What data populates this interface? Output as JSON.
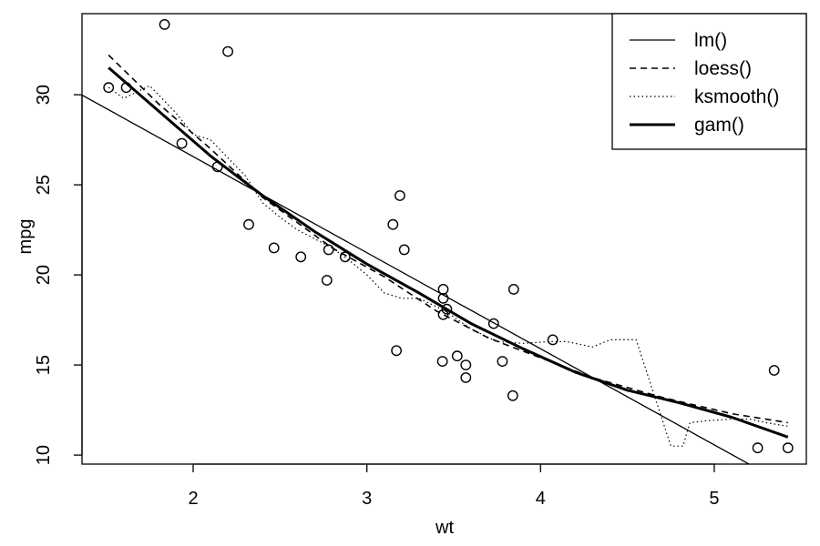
{
  "chart_data": {
    "type": "scatter",
    "xlabel": "wt",
    "ylabel": "mpg",
    "xlim": [
      1.36,
      5.53
    ],
    "ylim": [
      9.5,
      34.5
    ],
    "xticks": [
      2,
      3,
      4,
      5
    ],
    "yticks": [
      10,
      15,
      20,
      25,
      30
    ],
    "legend_position": "top-right",
    "points": [
      [
        1.513,
        30.4
      ],
      [
        1.615,
        30.4
      ],
      [
        1.835,
        33.9
      ],
      [
        1.935,
        27.3
      ],
      [
        2.14,
        26.0
      ],
      [
        2.2,
        32.4
      ],
      [
        2.32,
        22.8
      ],
      [
        2.465,
        21.5
      ],
      [
        2.62,
        21.0
      ],
      [
        2.77,
        19.7
      ],
      [
        2.78,
        21.4
      ],
      [
        2.875,
        21.0
      ],
      [
        3.15,
        22.8
      ],
      [
        3.17,
        15.8
      ],
      [
        3.19,
        24.4
      ],
      [
        3.215,
        21.4
      ],
      [
        3.435,
        15.2
      ],
      [
        3.44,
        18.7
      ],
      [
        3.44,
        19.2
      ],
      [
        3.44,
        17.8
      ],
      [
        3.46,
        18.1
      ],
      [
        3.52,
        15.5
      ],
      [
        3.57,
        15.0
      ],
      [
        3.57,
        14.3
      ],
      [
        3.73,
        17.3
      ],
      [
        3.78,
        15.2
      ],
      [
        3.84,
        13.3
      ],
      [
        3.845,
        19.2
      ],
      [
        4.07,
        16.4
      ],
      [
        5.25,
        10.4
      ],
      [
        5.345,
        14.7
      ],
      [
        5.424,
        10.4
      ]
    ],
    "series": [
      {
        "name": "lm()",
        "style": "solid-thin",
        "x": [
          1.36,
          5.2
        ],
        "y": [
          29.98,
          9.5
        ]
      },
      {
        "name": "loess()",
        "style": "dashed",
        "x": [
          1.513,
          1.8,
          2.1,
          2.4,
          2.8,
          3.1,
          3.4,
          3.7,
          4.0,
          4.3,
          4.7,
          5.1,
          5.424
        ],
        "y": [
          32.2,
          29.5,
          27.0,
          24.3,
          21.5,
          19.9,
          18.0,
          16.5,
          15.4,
          14.3,
          13.2,
          12.3,
          11.8
        ]
      },
      {
        "name": "ksmooth()",
        "style": "dotted",
        "x": [
          1.513,
          1.6,
          1.75,
          1.9,
          2.0,
          2.1,
          2.2,
          2.3,
          2.4,
          2.5,
          2.6,
          2.7,
          2.8,
          2.9,
          3.0,
          3.1,
          3.2,
          3.3,
          3.45,
          3.6,
          3.75,
          3.9,
          4.05,
          4.15,
          4.3,
          4.4,
          4.55,
          4.75,
          4.82,
          4.86,
          4.95,
          5.1,
          5.2,
          5.3,
          5.424
        ],
        "y": [
          30.4,
          29.8,
          30.5,
          29.0,
          27.8,
          27.5,
          26.5,
          25.5,
          24.0,
          23.2,
          22.5,
          22.0,
          21.5,
          20.8,
          20.0,
          19.0,
          18.7,
          18.7,
          18.0,
          17.0,
          16.3,
          16.2,
          16.3,
          16.3,
          16.0,
          16.4,
          16.4,
          10.5,
          10.5,
          11.8,
          11.9,
          12.0,
          12.0,
          11.8,
          11.6
        ]
      },
      {
        "name": "gam()",
        "style": "solid-thick",
        "x": [
          1.513,
          1.8,
          2.1,
          2.4,
          2.7,
          3.0,
          3.3,
          3.6,
          3.9,
          4.2,
          4.5,
          4.8,
          5.1,
          5.424
        ],
        "y": [
          31.5,
          29.1,
          26.6,
          24.4,
          22.4,
          20.6,
          19.0,
          17.3,
          15.9,
          14.6,
          13.6,
          12.9,
          12.1,
          11.0
        ]
      }
    ]
  }
}
